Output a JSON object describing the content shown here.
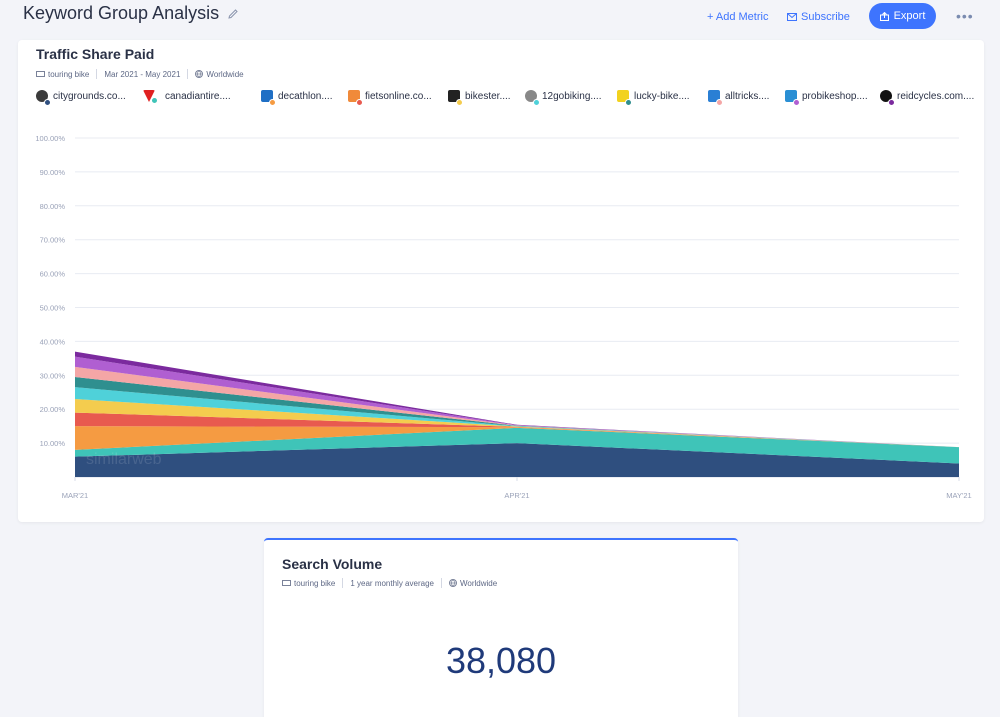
{
  "header": {
    "title": "Keyword Group Analysis",
    "add_metric": "+ Add Metric",
    "subscribe": "Subscribe",
    "export": "Export"
  },
  "traffic_card": {
    "title": "Traffic Share Paid",
    "keyword": "touring bike",
    "date_range": "Mar 2021 - May 2021",
    "region": "Worldwide",
    "watermark": "similarweb",
    "legend": [
      {
        "label": "citygrounds.co...",
        "color": "#2f4f7f"
      },
      {
        "label": "canadiantire....",
        "color": "#3fc4b8"
      },
      {
        "label": "decathlon....",
        "color": "#f59b42"
      },
      {
        "label": "fietsonline.co...",
        "color": "#e85a4f"
      },
      {
        "label": "bikester....",
        "color": "#f4cc4e"
      },
      {
        "label": "12gobiking....",
        "color": "#4fd1d9"
      },
      {
        "label": "lucky-bike....",
        "color": "#2f8f8f"
      },
      {
        "label": "alltricks....",
        "color": "#f4a6a6"
      },
      {
        "label": "probikeshop....",
        "color": "#b05fd1"
      },
      {
        "label": "reidcycles.com....",
        "color": "#7b2a9e"
      }
    ]
  },
  "chart_data": {
    "type": "area",
    "stacked": true,
    "x": [
      "MAR'21",
      "APR'21",
      "MAY'21"
    ],
    "ylim": [
      0,
      100
    ],
    "yticks": [
      "10.00%",
      "20.00%",
      "30.00%",
      "40.00%",
      "50.00%",
      "60.00%",
      "70.00%",
      "80.00%",
      "90.00%",
      "100.00%"
    ],
    "series": [
      {
        "name": "citygrounds.co...",
        "color": "#2f4f7f",
        "values": [
          6.0,
          10.0,
          4.0
        ]
      },
      {
        "name": "canadiantire....",
        "color": "#3fc4b8",
        "values": [
          2.0,
          4.5,
          4.8
        ]
      },
      {
        "name": "decathlon....",
        "color": "#f59b42",
        "values": [
          7.0,
          0.2,
          0.0
        ]
      },
      {
        "name": "fietsonline.co...",
        "color": "#e85a4f",
        "values": [
          4.0,
          0.1,
          0.0
        ]
      },
      {
        "name": "bikester....",
        "color": "#f4cc4e",
        "values": [
          4.0,
          0.1,
          0.0
        ]
      },
      {
        "name": "12gobiking....",
        "color": "#4fd1d9",
        "values": [
          3.5,
          0.1,
          0.0
        ]
      },
      {
        "name": "lucky-bike....",
        "color": "#2f8f8f",
        "values": [
          3.0,
          0.1,
          0.0
        ]
      },
      {
        "name": "alltricks....",
        "color": "#f4a6a6",
        "values": [
          3.0,
          0.1,
          0.0
        ]
      },
      {
        "name": "probikeshop....",
        "color": "#b05fd1",
        "values": [
          3.0,
          0.1,
          0.0
        ]
      },
      {
        "name": "reidcycles.com....",
        "color": "#7b2a9e",
        "values": [
          1.5,
          0.1,
          0.0
        ]
      }
    ]
  },
  "search_volume": {
    "title": "Search Volume",
    "keyword": "touring bike",
    "period": "1 year monthly average",
    "region": "Worldwide",
    "value": "38,080"
  }
}
